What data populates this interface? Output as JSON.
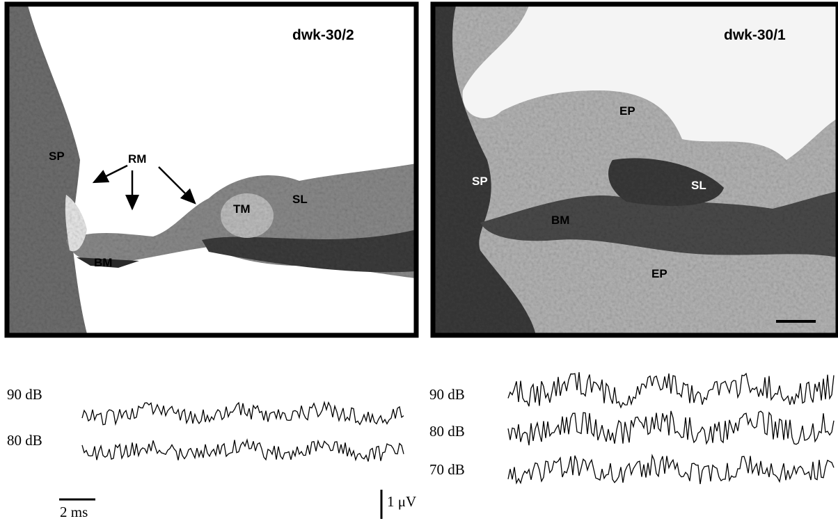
{
  "panels": [
    {
      "label": "dwk-30/2",
      "annotations": [
        "SP",
        "RM",
        "TM",
        "SL",
        "BM"
      ],
      "traces": [
        "90 dB",
        "80 dB"
      ],
      "time_scale": "2 ms",
      "voltage_scale": "1 μV"
    },
    {
      "label": "dwk-30/1",
      "annotations": [
        "EP",
        "SP",
        "SL",
        "BM",
        "EP"
      ],
      "traces": [
        "90 dB",
        "80 dB",
        "70 dB"
      ]
    }
  ]
}
